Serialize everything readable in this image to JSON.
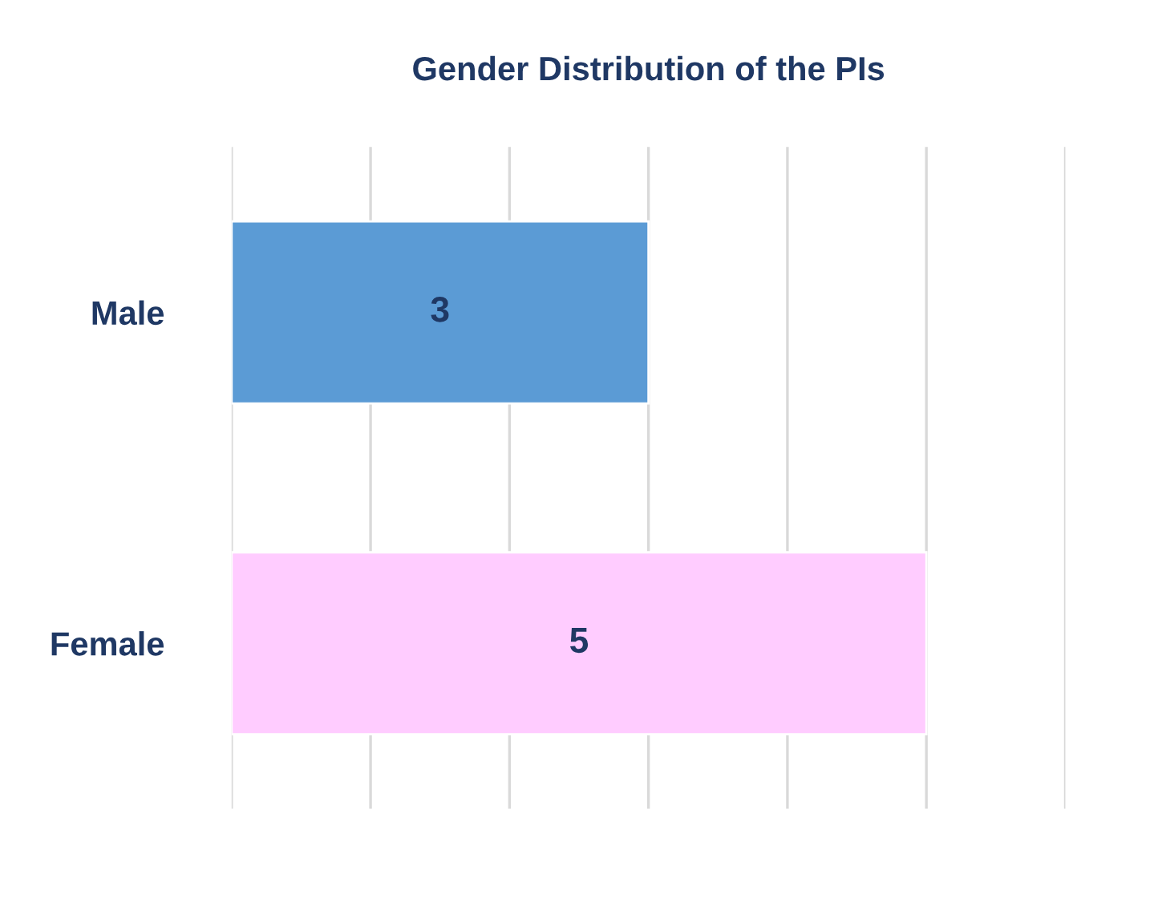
{
  "chart_data": {
    "type": "bar",
    "orientation": "horizontal",
    "title": "Gender Distribution of the PIs",
    "categories": [
      "Male",
      "Female"
    ],
    "values": [
      3,
      5
    ],
    "colors": [
      "#5b9bd5",
      "#ffccff"
    ],
    "xlim": [
      0,
      6
    ],
    "xticks": [
      {
        "value": 0,
        "label": null
      },
      {
        "value": 1,
        "label": null
      },
      {
        "value": 2,
        "label": null
      },
      {
        "value": 3,
        "label": null
      },
      {
        "value": 4,
        "label": null
      },
      {
        "value": 5,
        "label": null
      },
      {
        "value": 6,
        "label": null
      }
    ],
    "grid": "x",
    "tick_labels": "y",
    "data_labels": true
  }
}
